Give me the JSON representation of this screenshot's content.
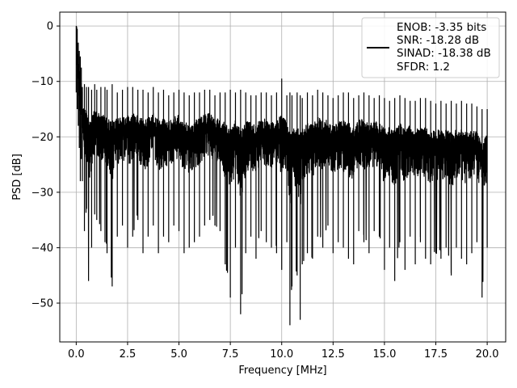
{
  "chart_data": {
    "type": "line",
    "xlabel": "Frequency [MHz]",
    "ylabel": "PSD [dB]",
    "xlim": [
      -0.8,
      20.9
    ],
    "ylim": [
      -57,
      2.5
    ],
    "xticks": [
      0.0,
      2.5,
      5.0,
      7.5,
      10.0,
      12.5,
      15.0,
      17.5,
      20.0
    ],
    "xtick_labels": [
      "0.0",
      "2.5",
      "5.0",
      "7.5",
      "10.0",
      "12.5",
      "15.0",
      "17.5",
      "20.0"
    ],
    "yticks": [
      0,
      -10,
      -20,
      -30,
      -40,
      -50
    ],
    "ytick_labels": [
      "0",
      "−10",
      "−20",
      "−30",
      "−40",
      "−50"
    ],
    "grid": true,
    "legend_position": "top-right",
    "series": [
      {
        "color": "#000000",
        "legend_lines": [
          "ENOB: -3.35 bits",
          "SNR: -18.28 dB",
          "SINAD: -18.38 dB",
          "SFDR: 1.2"
        ],
        "x": [
          0.0,
          0.05,
          0.1,
          0.15,
          0.2,
          0.25,
          0.3,
          0.4,
          0.5,
          0.6,
          0.75,
          0.9,
          1.0,
          1.2,
          1.4,
          1.5,
          1.75,
          2.0,
          2.25,
          2.5,
          2.75,
          3.0,
          3.25,
          3.5,
          3.75,
          4.0,
          4.25,
          4.5,
          4.75,
          5.0,
          5.25,
          5.5,
          5.75,
          6.0,
          6.25,
          6.5,
          6.75,
          7.0,
          7.25,
          7.5,
          7.75,
          8.0,
          8.25,
          8.5,
          8.75,
          9.0,
          9.25,
          9.5,
          9.75,
          10.0,
          10.25,
          10.4,
          10.5,
          10.75,
          10.9,
          11.0,
          11.25,
          11.5,
          11.75,
          12.0,
          12.25,
          12.5,
          12.75,
          13.0,
          13.25,
          13.5,
          13.75,
          14.0,
          14.25,
          14.5,
          14.75,
          15.0,
          15.25,
          15.5,
          15.75,
          16.0,
          16.25,
          16.5,
          16.75,
          17.0,
          17.25,
          17.5,
          17.75,
          18.0,
          18.25,
          18.5,
          18.75,
          19.0,
          19.25,
          19.5,
          19.75,
          20.0
        ],
        "upper": [
          0,
          -0.5,
          -3,
          -4.5,
          -5.5,
          -7.5,
          -11,
          -10.5,
          -11,
          -11,
          -11.5,
          -10.5,
          -11.5,
          -11,
          -11,
          -11.5,
          -10.5,
          -12,
          -11.5,
          -11,
          -11,
          -11.5,
          -11.5,
          -12,
          -11,
          -12,
          -11.5,
          -12.5,
          -12,
          -11.5,
          -12,
          -12.5,
          -12,
          -12,
          -11.5,
          -11.5,
          -12.5,
          -12,
          -12,
          -11.5,
          -12,
          -11.5,
          -12,
          -12.5,
          -12.5,
          -12,
          -12,
          -12.5,
          -12,
          -9.5,
          -12.5,
          -12,
          -12.5,
          -12,
          -12.5,
          -13,
          -12,
          -12.5,
          -11.5,
          -12,
          -12.5,
          -13,
          -12.5,
          -12,
          -12,
          -13,
          -12.5,
          -12,
          -12.5,
          -13,
          -12.5,
          -13,
          -13.5,
          -13,
          -12.5,
          -13,
          -13.5,
          -13.5,
          -13,
          -13,
          -13.5,
          -14,
          -13.5,
          -14,
          -13.5,
          -14,
          -13.5,
          -14,
          -14,
          -14.5,
          -15,
          -15
        ],
        "lower": [
          -12,
          -15,
          -18,
          -22,
          -28,
          -24,
          -28,
          -37,
          -33,
          -46,
          -40,
          -34,
          -35,
          -37,
          -39,
          -41,
          -47,
          -38,
          -36,
          -40,
          -38,
          -35,
          -41,
          -38,
          -36,
          -41,
          -38,
          -39,
          -36,
          -37,
          -41,
          -40,
          -39,
          -38,
          -36,
          -35,
          -36,
          -37,
          -43,
          -49,
          -40,
          -52,
          -41,
          -38,
          -42,
          -37,
          -39,
          -40,
          -41,
          -44,
          -39,
          -54,
          -47,
          -45,
          -53,
          -43,
          -41,
          -42,
          -38,
          -40,
          -36,
          -41,
          -39,
          -40,
          -42,
          -43,
          -37,
          -39,
          -41,
          -37,
          -38,
          -44,
          -40,
          -46,
          -39,
          -44,
          -38,
          -43,
          -39,
          -42,
          -43,
          -41,
          -42,
          -40,
          -45,
          -40,
          -42,
          -43,
          -41,
          -39,
          -49,
          -40
        ]
      }
    ]
  }
}
